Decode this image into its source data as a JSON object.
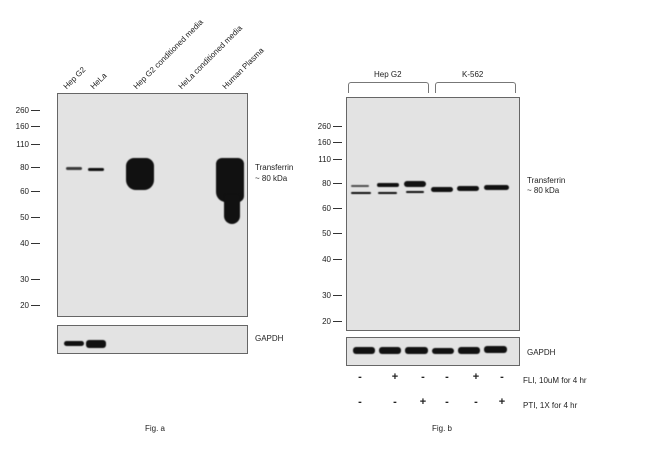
{
  "fig_a": {
    "lanes": [
      "Hep G2",
      "HeLa",
      "Hep G2 conditioned media",
      "HeLa conditioned media",
      "Human Plasma"
    ],
    "markers": [
      "260",
      "160",
      "110",
      "80",
      "60",
      "50",
      "40",
      "30",
      "20"
    ],
    "target_label": [
      "Transferrin",
      "~ 80 kDa"
    ],
    "loading_label": "GAPDH",
    "caption": "Fig. a"
  },
  "fig_b": {
    "groups": [
      "Hep G2",
      "K-562"
    ],
    "markers": [
      "260",
      "160",
      "110",
      "80",
      "60",
      "50",
      "40",
      "30",
      "20"
    ],
    "target_label": [
      "Transferrin",
      "~ 80 kDa"
    ],
    "loading_label": "GAPDH",
    "treatments": [
      {
        "label": "FLI, 10uM for 4 hr",
        "signs": [
          "-",
          "+",
          "-",
          "-",
          "+",
          "-"
        ]
      },
      {
        "label": "PTI, 1X for 4 hr",
        "signs": [
          "-",
          "-",
          "+",
          "-",
          "-",
          "+"
        ]
      }
    ],
    "caption": "Fig. b"
  }
}
